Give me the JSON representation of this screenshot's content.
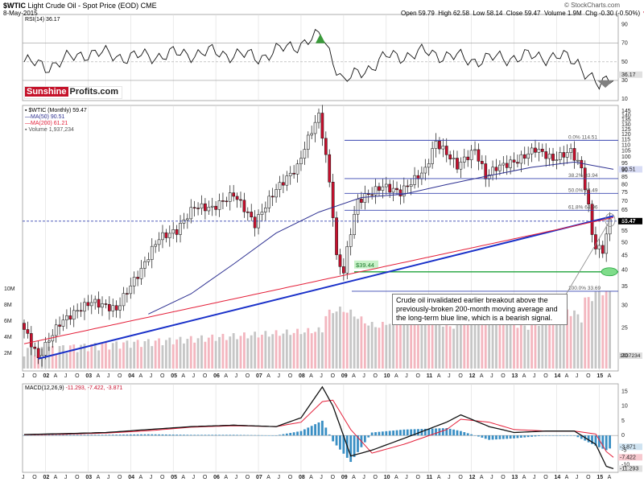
{
  "header": {
    "symbol": "$WTIC",
    "title": "Light Crude Oil - Spot Price (EOD)",
    "exchange": "CME",
    "date": "8-May-2015",
    "open": "Open 59.79",
    "high": "High 62.58",
    "low": "Low 58.14",
    "close": "Close 59.47",
    "volume": "Volume 1.9M",
    "chg": "Chg -0.30 (-0.50%)",
    "chg_arrow": "▼",
    "copyright": "© StockCharts.com"
  },
  "logo": {
    "part1": "Sunshine",
    "part2": "Profits.com"
  },
  "annotation": "Crude oil invalidated earlier breakout above the previously-broken 200-month moving average and the long-term blue line, which is a bearish signal.",
  "colors": {
    "up": "#e9e9e9",
    "down": "#c8102e",
    "ma50": "#2e3192",
    "ma200": "#e4203a",
    "trend": "#1a31c9",
    "fib": "#3846b0",
    "support": "#1fa33a",
    "macd_bar": "#3a8fc4",
    "rsi_over": "#3a9a3a",
    "rsi_under": "#808080"
  },
  "chart_data": [
    {
      "type": "line",
      "title": "RSI(14) 36.17",
      "indicator": "RSI",
      "ylim": [
        10,
        100
      ],
      "y_ticks": [
        10,
        30,
        50,
        70,
        90
      ],
      "last_value": 36.17,
      "last_label": "36.17",
      "levels": [
        30,
        50,
        70
      ],
      "x": [
        "2001-07",
        "2002-01",
        "2003-01",
        "2004-01",
        "2005-01",
        "2006-01",
        "2007-01",
        "2008-01",
        "2008-07",
        "2009-01",
        "2010-01",
        "2011-01",
        "2012-01",
        "2013-01",
        "2014-01",
        "2014-07",
        "2015-01",
        "2015-05"
      ],
      "values": [
        50,
        45,
        60,
        55,
        58,
        60,
        55,
        70,
        78,
        28,
        55,
        60,
        52,
        55,
        56,
        50,
        22,
        36
      ]
    },
    {
      "type": "candlestick",
      "title": "$WTIC (Monthly) 59.47",
      "legend": [
        "$WTIC (Monthly) 59.47",
        "MA(50) 90.51",
        "MA(200) 61.21",
        "Volume 1,937,234"
      ],
      "ylim": [
        18,
        150
      ],
      "log_scale": true,
      "y_ticks": [
        20,
        25,
        30,
        35,
        40,
        45,
        50,
        55,
        60,
        65,
        70,
        75,
        80,
        85,
        90,
        95,
        100,
        105,
        110,
        115,
        120,
        125,
        130,
        135,
        140,
        145
      ],
      "x_tick_labels": [
        "J",
        "O",
        "02",
        "A",
        "J",
        "O",
        "03",
        "A",
        "J",
        "O",
        "04",
        "A",
        "J",
        "O",
        "05",
        "A",
        "J",
        "O",
        "06",
        "A",
        "J",
        "O",
        "07",
        "A",
        "J",
        "O",
        "08",
        "A",
        "J",
        "O",
        "09",
        "A",
        "J",
        "O",
        "10",
        "A",
        "J",
        "O",
        "11",
        "A",
        "J",
        "O",
        "12",
        "A",
        "J",
        "O",
        "13",
        "A",
        "J",
        "O",
        "14",
        "A",
        "J",
        "O",
        "15",
        "A"
      ],
      "close_path": {
        "x": [
          "2001-07",
          "2001-12",
          "2002-06",
          "2003-03",
          "2003-10",
          "2004-05",
          "2004-10",
          "2005-03",
          "2005-08",
          "2006-01",
          "2006-07",
          "2007-01",
          "2007-07",
          "2008-01",
          "2008-07",
          "2008-09",
          "2008-12",
          "2009-02",
          "2009-06",
          "2010-01",
          "2010-06",
          "2011-01",
          "2011-04",
          "2011-10",
          "2012-03",
          "2012-06",
          "2012-09",
          "2013-03",
          "2013-08",
          "2014-01",
          "2014-06",
          "2014-09",
          "2014-12",
          "2015-01",
          "2015-03",
          "2015-05"
        ],
        "values": [
          26,
          19.5,
          26,
          31,
          29,
          40,
          52,
          55,
          67,
          66,
          74,
          58,
          77,
          92,
          140,
          100,
          44,
          39.44,
          70,
          79,
          75,
          90,
          113,
          93,
          106,
          85,
          92,
          97,
          107,
          98,
          105,
          91,
          54,
          48,
          47,
          59.47
        ]
      },
      "ma50": {
        "last": 90.51,
        "last_label": "90.51"
      },
      "ma200": {
        "last": 61.21
      },
      "last_close_label": "59.47",
      "fibonacci": [
        {
          "label": "0.0% 114.51",
          "value": 114.51
        },
        {
          "label": "38.2% 83.94",
          "value": 83.94
        },
        {
          "label": "50.0% 74.49",
          "value": 74.49
        },
        {
          "label": "61.8% 64.96",
          "value": 64.96
        },
        {
          "label": "100.0% 33.69",
          "value": 33.69
        }
      ],
      "support": {
        "label": "$39.44",
        "value": 39.44
      },
      "trend_line": {
        "from": [
          "2001-11",
          19.5
        ],
        "to": [
          "2015-05",
          62
        ]
      },
      "volume": {
        "axis_labels": [
          "2M",
          "4M",
          "6M",
          "8M",
          "10M"
        ],
        "last_label": "1937234"
      }
    },
    {
      "type": "line",
      "title": "MACD(12,26,9) -11.293, -7.422, -3.871",
      "label_main": "MACD(12,26,9)",
      "label_vals": "-11.293, -7.422, -3.871",
      "indicator": "MACD",
      "ylim": [
        -12,
        17
      ],
      "y_ticks": [
        -10,
        -5,
        0,
        5,
        10,
        15
      ],
      "end_labels": [
        "-3.871",
        "-7.422",
        "-11.293"
      ],
      "x": [
        "2001-07",
        "2002-06",
        "2003-06",
        "2004-06",
        "2005-06",
        "2006-06",
        "2007-06",
        "2008-01",
        "2008-07",
        "2008-10",
        "2009-03",
        "2009-09",
        "2010-06",
        "2011-06",
        "2011-10",
        "2012-06",
        "2013-01",
        "2013-10",
        "2014-06",
        "2014-12",
        "2015-03",
        "2015-05"
      ],
      "macd": [
        0.3,
        0.6,
        1,
        2,
        3,
        3.5,
        3,
        6,
        16.5,
        10,
        -7,
        -5,
        -1,
        4.5,
        7,
        3,
        1,
        1.5,
        1.5,
        -3,
        -10.5,
        -11.293
      ],
      "signal": [
        0.2,
        0.4,
        0.8,
        1.6,
        2.8,
        3.3,
        3.0,
        4.5,
        11.5,
        12,
        2,
        -6,
        -3,
        2,
        5.5,
        4.5,
        2,
        1.5,
        1.5,
        0.5,
        -5.5,
        -7.422
      ],
      "histogram_last": -3.871
    }
  ]
}
